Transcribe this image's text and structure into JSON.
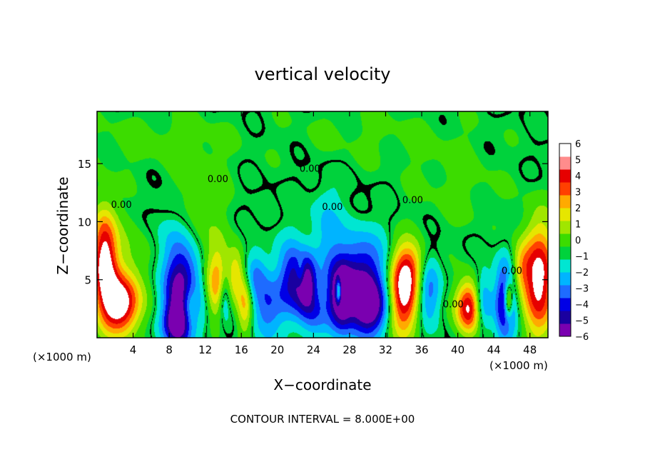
{
  "chart_data": {
    "type": "heatmap",
    "title": "vertical velocity",
    "xlabel": "X−coordinate",
    "ylabel": "Z−coordinate",
    "x_unit_left": "(×1000 m)",
    "x_unit_right": "(×1000 m)",
    "footer": "CONTOUR INTERVAL = 8.000E+00",
    "xlim": [
      0,
      50
    ],
    "ylim": [
      0,
      19.5
    ],
    "x_ticks": [
      4,
      8,
      12,
      16,
      20,
      24,
      28,
      32,
      36,
      40,
      44,
      48
    ],
    "y_ticks": [
      5,
      10,
      15
    ],
    "colorbar": {
      "min": -6,
      "max": 6,
      "ticks": [
        6,
        5,
        4,
        3,
        2,
        1,
        0,
        -1,
        -2,
        -3,
        -4,
        -5,
        -6
      ],
      "tick_labels": [
        "6",
        "5",
        "4",
        "3",
        "2",
        "1",
        "0",
        "−1",
        "−2",
        "−3",
        "−4",
        "−5",
        "−6"
      ],
      "colors": [
        "#7a00b0",
        "#1a00a0",
        "#0000e6",
        "#1e6bff",
        "#00b4ff",
        "#00e6d2",
        "#00d23c",
        "#3cdc00",
        "#a0e600",
        "#e6e600",
        "#ffaa00",
        "#ff4000",
        "#e60000",
        "#ff8c8c",
        "#ffffff"
      ]
    },
    "contour_labels": [
      {
        "text": "0.00",
        "x": 23.6,
        "z": 14.3
      },
      {
        "text": "0.00",
        "x": 2.7,
        "z": 11.2
      },
      {
        "text": "0.00",
        "x": 13.4,
        "z": 13.4
      },
      {
        "text": "0.00",
        "x": 26.1,
        "z": 11.0
      },
      {
        "text": "0.00",
        "x": 35.0,
        "z": 11.6
      },
      {
        "text": "0.00",
        "x": 39.5,
        "z": 2.6
      },
      {
        "text": "0.00",
        "x": 46.0,
        "z": 5.5
      }
    ],
    "features": [
      {
        "x": 0.8,
        "z": 6.8,
        "value": 6.5,
        "sx": 1.0,
        "sz": 3.0
      },
      {
        "x": 2.6,
        "z": 2.8,
        "value": 6.5,
        "sx": 1.5,
        "sz": 1.8
      },
      {
        "x": 3.8,
        "z": 6.0,
        "value": 1.2,
        "sx": 2.5,
        "sz": 3.0
      },
      {
        "x": 8.6,
        "z": 5.6,
        "value": -3.5,
        "sx": 1.4,
        "sz": 3.5
      },
      {
        "x": 10.0,
        "z": 3.2,
        "value": -6.5,
        "sx": 1.2,
        "sz": 2.3
      },
      {
        "x": 10.2,
        "z": 2.6,
        "value": 6.5,
        "sx": 0.8,
        "sz": 1.7
      },
      {
        "x": 9.0,
        "z": 1.2,
        "value": -4.5,
        "sx": 1.2,
        "sz": 1.2
      },
      {
        "x": 11.0,
        "z": 11.0,
        "value": 1.2,
        "sx": 2.5,
        "sz": 4.0
      },
      {
        "x": 13.4,
        "z": 4.6,
        "value": 4.0,
        "sx": 0.9,
        "sz": 2.2
      },
      {
        "x": 14.1,
        "z": 3.6,
        "value": -3.0,
        "sx": 0.5,
        "sz": 1.5
      },
      {
        "x": 15.4,
        "z": 5.5,
        "value": 3.0,
        "sx": 0.6,
        "sz": 1.6
      },
      {
        "x": 16.4,
        "z": 3.0,
        "value": 3.5,
        "sx": 0.6,
        "sz": 2.0
      },
      {
        "x": 17.5,
        "z": 5.5,
        "value": -2.5,
        "sx": 1.0,
        "sz": 1.5
      },
      {
        "x": 18.8,
        "z": 2.6,
        "value": -3.0,
        "sx": 1.2,
        "sz": 1.8
      },
      {
        "x": 21.6,
        "z": 5.0,
        "value": -4.0,
        "sx": 1.1,
        "sz": 2.2
      },
      {
        "x": 22.6,
        "z": 5.5,
        "value": 2.5,
        "sx": 0.4,
        "sz": 1.0
      },
      {
        "x": 23.2,
        "z": 4.8,
        "value": -5.5,
        "sx": 0.8,
        "sz": 1.6
      },
      {
        "x": 24.0,
        "z": 2.2,
        "value": -2.5,
        "sx": 1.2,
        "sz": 1.5
      },
      {
        "x": 27.0,
        "z": 3.5,
        "value": -5.5,
        "sx": 0.9,
        "sz": 2.0
      },
      {
        "x": 26.8,
        "z": 4.0,
        "value": 6.5,
        "sx": 0.25,
        "sz": 0.8
      },
      {
        "x": 29.2,
        "z": 5.0,
        "value": -5.0,
        "sx": 2.0,
        "sz": 2.6
      },
      {
        "x": 30.2,
        "z": 2.4,
        "value": -4.5,
        "sx": 1.5,
        "sz": 1.6
      },
      {
        "x": 25.4,
        "z": 9.0,
        "value": -1.5,
        "sx": 1.2,
        "sz": 3.0
      },
      {
        "x": 34.0,
        "z": 3.5,
        "value": 6.5,
        "sx": 1.2,
        "sz": 2.4
      },
      {
        "x": 34.6,
        "z": 6.2,
        "value": 3.0,
        "sx": 1.3,
        "sz": 1.5
      },
      {
        "x": 36.8,
        "z": 4.0,
        "value": -3.0,
        "sx": 0.9,
        "sz": 2.0
      },
      {
        "x": 41.2,
        "z": 2.6,
        "value": 6.5,
        "sx": 1.0,
        "sz": 1.6
      },
      {
        "x": 42.8,
        "z": 3.0,
        "value": -3.0,
        "sx": 0.7,
        "sz": 1.8
      },
      {
        "x": 45.3,
        "z": 3.2,
        "value": -5.5,
        "sx": 0.8,
        "sz": 2.4
      },
      {
        "x": 45.6,
        "z": 3.2,
        "value": 6.0,
        "sx": 0.35,
        "sz": 1.2
      },
      {
        "x": 49.0,
        "z": 5.0,
        "value": 6.5,
        "sx": 1.3,
        "sz": 3.4
      },
      {
        "x": 47.0,
        "z": 6.0,
        "value": 2.5,
        "sx": 0.8,
        "sz": 1.5
      },
      {
        "x": 5.0,
        "z": 17.0,
        "value": 0.7,
        "sx": 6.0,
        "sz": 2.0
      },
      {
        "x": 30.0,
        "z": 17.5,
        "value": 0.6,
        "sx": 8.0,
        "sz": 2.0
      },
      {
        "x": 40.0,
        "z": 13.0,
        "value": 0.7,
        "sx": 4.0,
        "sz": 3.0
      }
    ]
  }
}
